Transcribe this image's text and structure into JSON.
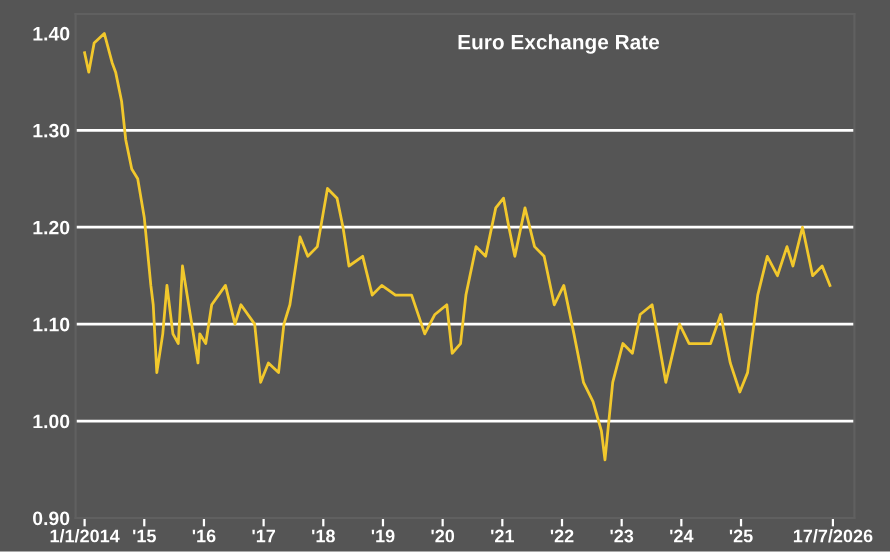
{
  "chart_data": {
    "type": "line",
    "title": "Euro Exchange Rate",
    "x": [
      2014.0,
      2014.07,
      2014.16,
      2014.33,
      2014.46,
      2014.52,
      2014.62,
      2014.69,
      2014.79,
      2014.89,
      2015.0,
      2015.11,
      2015.15,
      2015.21,
      2015.31,
      2015.38,
      2015.48,
      2015.57,
      2015.64,
      2015.77,
      2015.9,
      2015.93,
      2016.03,
      2016.13,
      2016.36,
      2016.52,
      2016.62,
      2016.85,
      2016.95,
      2017.08,
      2017.25,
      2017.34,
      2017.44,
      2017.61,
      2017.74,
      2017.9,
      2018.07,
      2018.23,
      2018.33,
      2018.43,
      2018.66,
      2018.82,
      2018.98,
      2019.21,
      2019.48,
      2019.7,
      2019.87,
      2020.07,
      2020.16,
      2020.3,
      2020.39,
      2020.56,
      2020.72,
      2020.89,
      2021.02,
      2021.11,
      2021.21,
      2021.38,
      2021.54,
      2021.7,
      2021.87,
      2022.03,
      2022.2,
      2022.36,
      2022.52,
      2022.66,
      2022.72,
      2022.85,
      2023.02,
      2023.18,
      2023.31,
      2023.51,
      2023.74,
      2023.97,
      2024.13,
      2024.33,
      2024.49,
      2024.66,
      2024.82,
      2024.98,
      2025.11,
      2025.28,
      2025.44,
      2025.61,
      2025.77,
      2025.87,
      2026.03,
      2026.2,
      2026.36,
      2026.49
    ],
    "series": [
      {
        "color": "#f2c82c",
        "values": [
          1.38,
          1.36,
          1.39,
          1.4,
          1.37,
          1.36,
          1.33,
          1.29,
          1.26,
          1.25,
          1.21,
          1.14,
          1.12,
          1.05,
          1.09,
          1.14,
          1.09,
          1.08,
          1.16,
          1.11,
          1.06,
          1.09,
          1.08,
          1.12,
          1.14,
          1.1,
          1.12,
          1.1,
          1.04,
          1.06,
          1.05,
          1.1,
          1.12,
          1.19,
          1.17,
          1.18,
          1.24,
          1.23,
          1.2,
          1.16,
          1.17,
          1.13,
          1.14,
          1.13,
          1.13,
          1.09,
          1.11,
          1.12,
          1.07,
          1.08,
          1.13,
          1.18,
          1.17,
          1.22,
          1.23,
          1.2,
          1.17,
          1.22,
          1.18,
          1.17,
          1.12,
          1.14,
          1.09,
          1.04,
          1.02,
          0.99,
          0.96,
          1.04,
          1.08,
          1.07,
          1.11,
          1.12,
          1.04,
          1.1,
          1.08,
          1.08,
          1.08,
          1.11,
          1.06,
          1.03,
          1.05,
          1.13,
          1.17,
          1.15,
          1.18,
          1.16,
          1.2,
          1.15,
          1.16,
          1.14
        ]
      }
    ],
    "xlim": [
      2013.85,
      2026.9
    ],
    "xticks": [
      {
        "value": 2014,
        "label": "1/1/2014"
      },
      {
        "value": 2015,
        "label": "'15"
      },
      {
        "value": 2016,
        "label": "'16"
      },
      {
        "value": 2017,
        "label": "'17"
      },
      {
        "value": 2018,
        "label": "'18"
      },
      {
        "value": 2019,
        "label": "'19"
      },
      {
        "value": 2020,
        "label": "'20"
      },
      {
        "value": 2021,
        "label": "'21"
      },
      {
        "value": 2022,
        "label": "'22"
      },
      {
        "value": 2023,
        "label": "'23"
      },
      {
        "value": 2024,
        "label": "'24"
      },
      {
        "value": 2025,
        "label": "'25"
      },
      {
        "value": 2026.54,
        "label": "17/7/2026"
      }
    ],
    "ylim": [
      0.9,
      1.42
    ],
    "yticks": [
      {
        "value": 0.9,
        "label": "0.90"
      },
      {
        "value": 1.0,
        "label": "1.00"
      },
      {
        "value": 1.1,
        "label": "1.10"
      },
      {
        "value": 1.2,
        "label": "1.20"
      },
      {
        "value": 1.3,
        "label": "1.30"
      },
      {
        "value": 1.4,
        "label": "1.40"
      }
    ],
    "grid": "y"
  }
}
